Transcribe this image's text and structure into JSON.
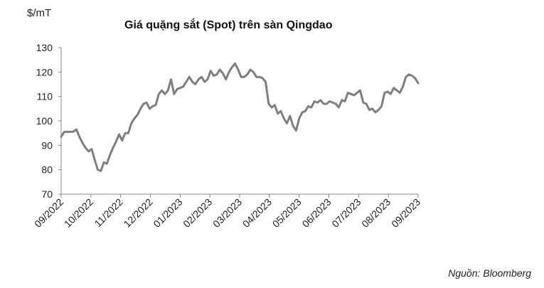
{
  "chart_data": {
    "type": "line",
    "title": "Giá quặng sắt (Spot) trên sàn Qingdao",
    "ylabel": "$/mT",
    "xlabel": "",
    "ylim": [
      70,
      130
    ],
    "yticks": [
      70,
      80,
      90,
      100,
      110,
      120,
      130
    ],
    "xticks": [
      "09/2022",
      "10/2022",
      "11/2022",
      "12/2022",
      "01/2023",
      "02/2023",
      "03/2023",
      "04/2023",
      "05/2023",
      "06/2023",
      "07/2023",
      "08/2023",
      "09/2023"
    ],
    "grid": false,
    "legend": "none",
    "line_color": "#7f7f7f",
    "series": [
      {
        "values": [
          93.5,
          95.5,
          95.5,
          95.5,
          95.6,
          96.5,
          93.5,
          91,
          89,
          87.5,
          88.5,
          84,
          80,
          79.5,
          83,
          82.5,
          86,
          89,
          91.5,
          94.5,
          92,
          95,
          95,
          99,
          101,
          102.5,
          105,
          107,
          107.5,
          105,
          106,
          106.5,
          111,
          112.5,
          111,
          112.5,
          117,
          111,
          113,
          113.5,
          114,
          116,
          118,
          116,
          115,
          117,
          118,
          116,
          117,
          120.5,
          118.5,
          119,
          121,
          119.5,
          117,
          120,
          122,
          123.5,
          121,
          118,
          118,
          119,
          121,
          120,
          118,
          118,
          117.5,
          116,
          107,
          105.5,
          106.5,
          103,
          104,
          101,
          99,
          102,
          98,
          96,
          101,
          103.5,
          104,
          106,
          105.5,
          108,
          107.5,
          108.5,
          107,
          107,
          108,
          107.5,
          107,
          105.5,
          108.5,
          108,
          111.5,
          111,
          110.5,
          111.5,
          112.5,
          107.5,
          107,
          104.5,
          105,
          103.5,
          104.5,
          106,
          111.5,
          112,
          111,
          113.5,
          112.5,
          111.5,
          114,
          118,
          119,
          118.5,
          117.5,
          115.5
        ]
      }
    ]
  },
  "source": "Nguồn: Bloomberg"
}
